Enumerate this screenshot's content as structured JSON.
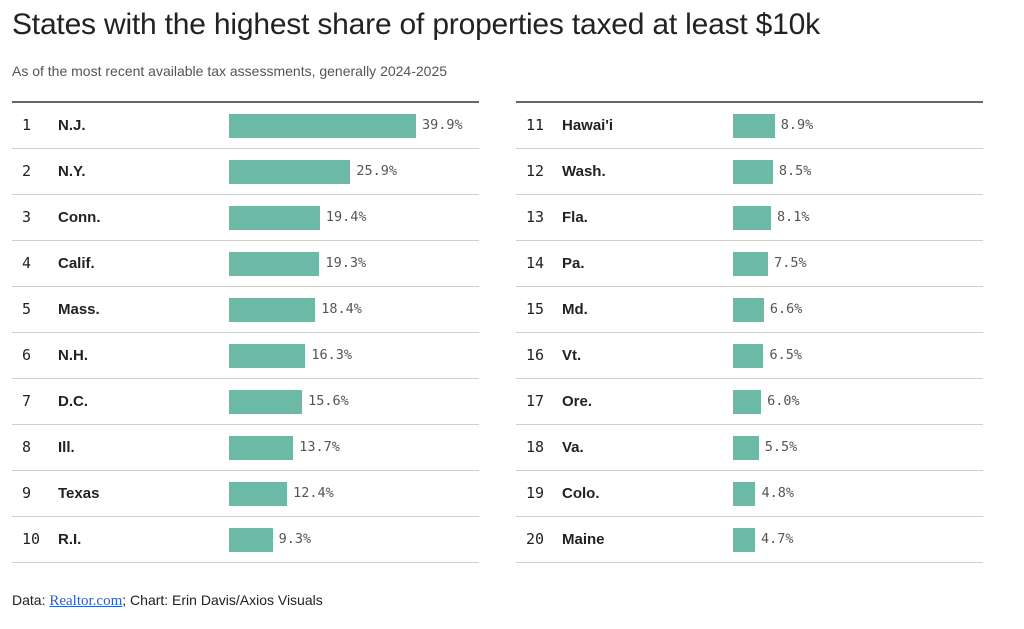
{
  "chart_data": {
    "type": "bar",
    "title": "States with the highest share of properties taxed at least $10k",
    "subtitle": "As of the most recent available tax assessments, generally 2024-2025",
    "ranks": [
      1,
      2,
      3,
      4,
      5,
      6,
      7,
      8,
      9,
      10,
      11,
      12,
      13,
      14,
      15,
      16,
      17,
      18,
      19,
      20
    ],
    "categories": [
      "N.J.",
      "N.Y.",
      "Conn.",
      "Calif.",
      "Mass.",
      "N.H.",
      "D.C.",
      "Ill.",
      "Texas",
      "R.I.",
      "Hawai'i",
      "Wash.",
      "Fla.",
      "Pa.",
      "Md.",
      "Vt.",
      "Ore.",
      "Va.",
      "Colo.",
      "Maine"
    ],
    "values": [
      39.9,
      25.9,
      19.4,
      19.3,
      18.4,
      16.3,
      15.6,
      13.7,
      12.4,
      9.3,
      8.9,
      8.5,
      8.1,
      7.5,
      6.6,
      6.5,
      6.0,
      5.5,
      4.8,
      4.7
    ],
    "value_labels": [
      "39.9%",
      "25.9%",
      "19.4%",
      "19.3%",
      "18.4%",
      "16.3%",
      "15.6%",
      "13.7%",
      "12.4%",
      "9.3%",
      "8.9%",
      "8.5%",
      "8.1%",
      "7.5%",
      "6.6%",
      "6.5%",
      "6.0%",
      "5.5%",
      "4.8%",
      "4.7%"
    ],
    "xlim": [
      0,
      39.9
    ],
    "xlabel": "",
    "ylabel": "",
    "grid": false,
    "bar_color": "#6cbaa6"
  },
  "footer": {
    "prefix": "Data: ",
    "source_link": "Realtor.com",
    "suffix": "; Chart: Erin Davis/Axios Visuals"
  }
}
